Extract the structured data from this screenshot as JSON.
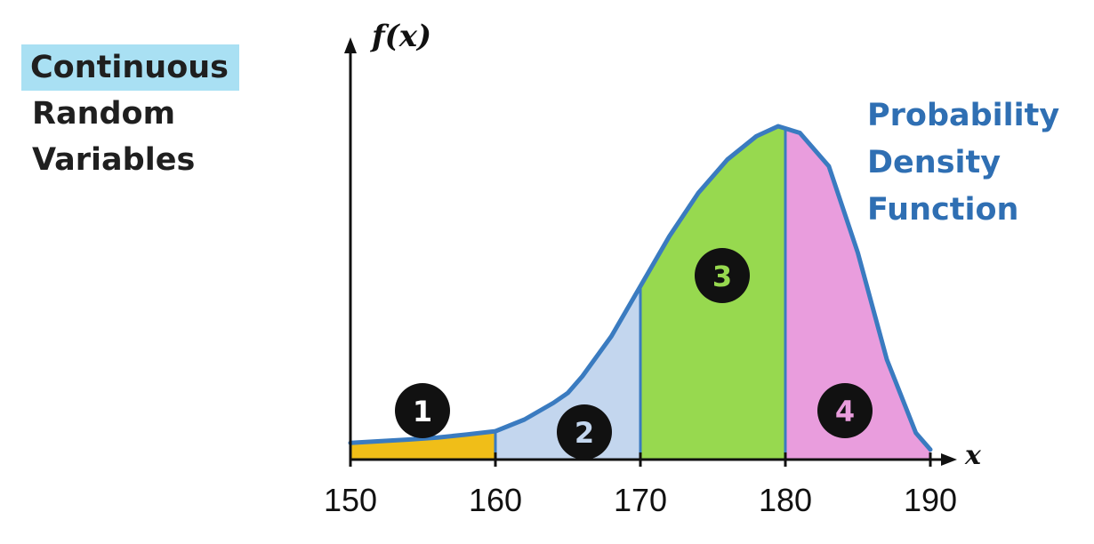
{
  "left_title": {
    "lines": [
      "Continuous",
      "Random",
      "Variables"
    ],
    "highlight": "#a9e0f3"
  },
  "side_label": {
    "lines": [
      "Probability",
      "Density",
      "Function"
    ],
    "color": "#2f6fb3"
  },
  "chart_data": {
    "type": "area",
    "ylabel": "f(x)",
    "xlabel": "x",
    "xlim": [
      150,
      190
    ],
    "ylim": [
      0,
      1
    ],
    "x_ticks": [
      "150",
      "160",
      "170",
      "180",
      "190"
    ],
    "grid": false,
    "curve": {
      "color": "#3a7bc0",
      "x": [
        150,
        152,
        154,
        156,
        158,
        160,
        162,
        164,
        165,
        166,
        168,
        170,
        172,
        174,
        176,
        178,
        179.5,
        181,
        183,
        185,
        187,
        189,
        190
      ],
      "y": [
        0.05,
        0.055,
        0.06,
        0.066,
        0.075,
        0.085,
        0.12,
        0.17,
        0.2,
        0.25,
        0.37,
        0.52,
        0.67,
        0.8,
        0.9,
        0.97,
        1.0,
        0.98,
        0.88,
        0.62,
        0.3,
        0.08,
        0.03
      ]
    },
    "regions": [
      {
        "label": "1",
        "from": 150,
        "to": 160,
        "color": "#f0be18",
        "label_color": "#ffffff"
      },
      {
        "label": "2",
        "from": 160,
        "to": 170,
        "color": "#c3d6ee",
        "label_color": "#c3d6ee"
      },
      {
        "label": "3",
        "from": 170,
        "to": 180,
        "color": "#97d94f",
        "label_color": "#97d94f"
      },
      {
        "label": "4",
        "from": 180,
        "to": 190,
        "color": "#e99ddd",
        "label_color": "#e99ddd"
      }
    ]
  }
}
